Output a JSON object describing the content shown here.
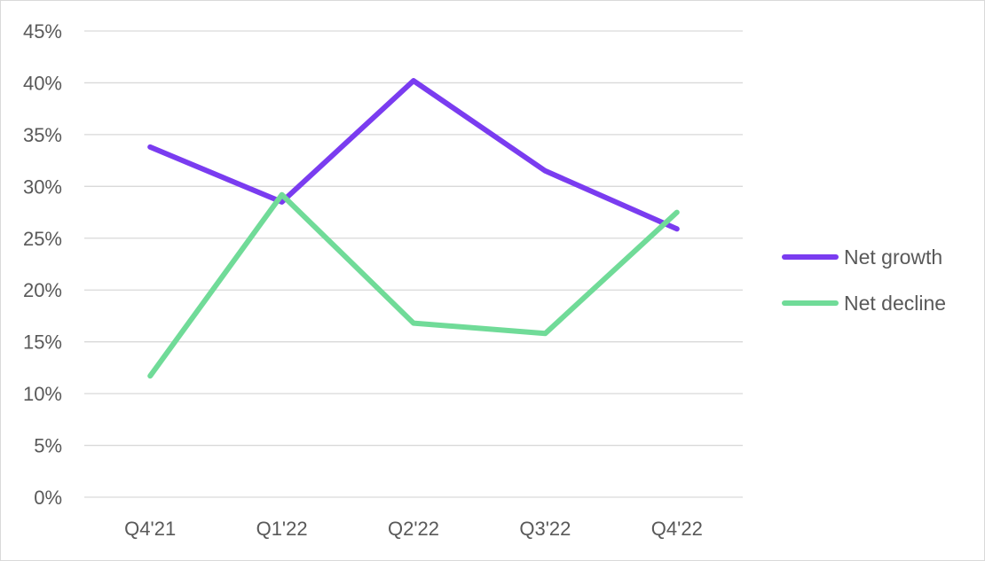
{
  "chart_data": {
    "type": "line",
    "title": "",
    "xlabel": "",
    "ylabel": "",
    "categories": [
      "Q4'21",
      "Q1'22",
      "Q2'22",
      "Q3'22",
      "Q4'22"
    ],
    "ylim": [
      0,
      0.45
    ],
    "ytick_values": [
      0,
      0.05,
      0.1,
      0.15,
      0.2,
      0.25,
      0.3,
      0.35,
      0.4,
      0.45
    ],
    "ytick_labels": [
      "0%",
      "5%",
      "10%",
      "15%",
      "20%",
      "25%",
      "30%",
      "35%",
      "40%",
      "45%"
    ],
    "grid": "horizontal",
    "legend_position": "right",
    "series": [
      {
        "name": "Net growth",
        "color": "#7a3cf0",
        "values": [
          0.338,
          0.285,
          0.402,
          0.315,
          0.259
        ]
      },
      {
        "name": "Net decline",
        "color": "#70db98",
        "values": [
          0.117,
          0.292,
          0.168,
          0.158,
          0.275
        ]
      }
    ]
  }
}
